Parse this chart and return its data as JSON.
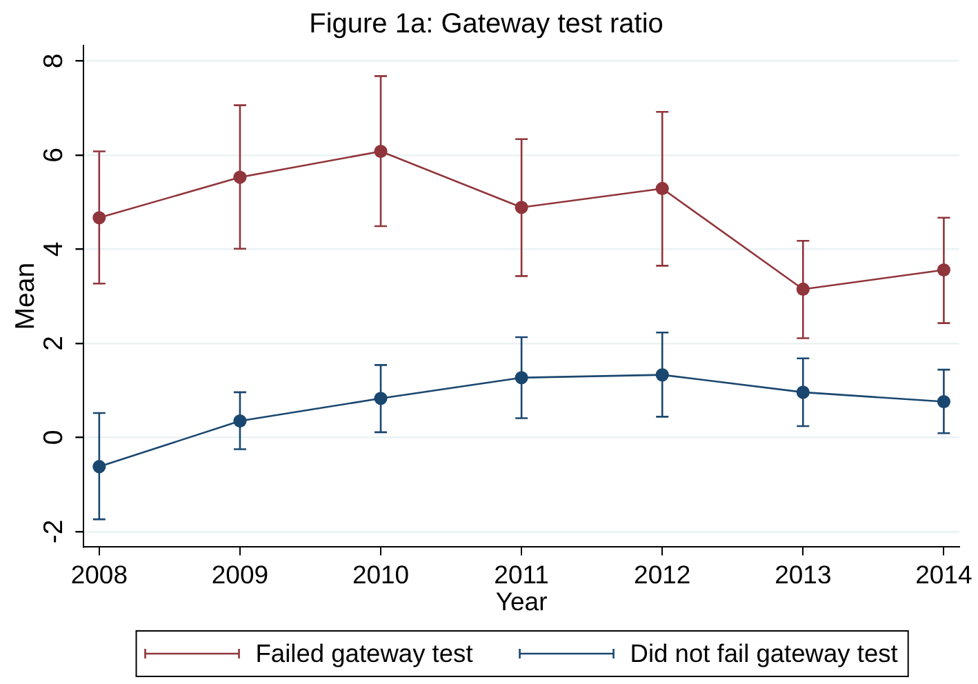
{
  "chart_data": {
    "type": "line",
    "title": "Figure 1a: Gateway test ratio",
    "xlabel": "Year",
    "ylabel": "Mean",
    "x": [
      2008,
      2009,
      2010,
      2011,
      2012,
      2013,
      2014
    ],
    "series": [
      {
        "name": "Failed gateway test",
        "color": "#90353b",
        "values": [
          4.67,
          5.53,
          6.08,
          4.89,
          5.29,
          3.15,
          3.56
        ],
        "errors": [
          [
            3.27,
            6.08
          ],
          [
            4.01,
            7.06
          ],
          [
            4.49,
            7.68
          ],
          [
            3.43,
            6.34
          ],
          [
            3.65,
            6.92
          ],
          [
            2.11,
            4.18
          ],
          [
            2.43,
            4.67
          ]
        ]
      },
      {
        "name": "Did not fail gateway test",
        "color": "#1a476f",
        "values": [
          -0.62,
          0.35,
          0.83,
          1.27,
          1.33,
          0.96,
          0.76
        ],
        "errors": [
          [
            -1.74,
            0.52
          ],
          [
            -0.25,
            0.96
          ],
          [
            0.11,
            1.54
          ],
          [
            0.41,
            2.13
          ],
          [
            0.44,
            2.23
          ],
          [
            0.24,
            1.68
          ],
          [
            0.09,
            1.44
          ]
        ]
      }
    ],
    "xlim": [
      2007.89,
      2014.11
    ],
    "ylim": [
      -2.33,
      8.33
    ],
    "xticks": [
      2008,
      2009,
      2010,
      2011,
      2012,
      2013,
      2014
    ],
    "yticks": [
      -2,
      0,
      2,
      4,
      6,
      8
    ],
    "grid": "y",
    "legend": "bottom",
    "marker": "circle",
    "line_style": "solid"
  }
}
